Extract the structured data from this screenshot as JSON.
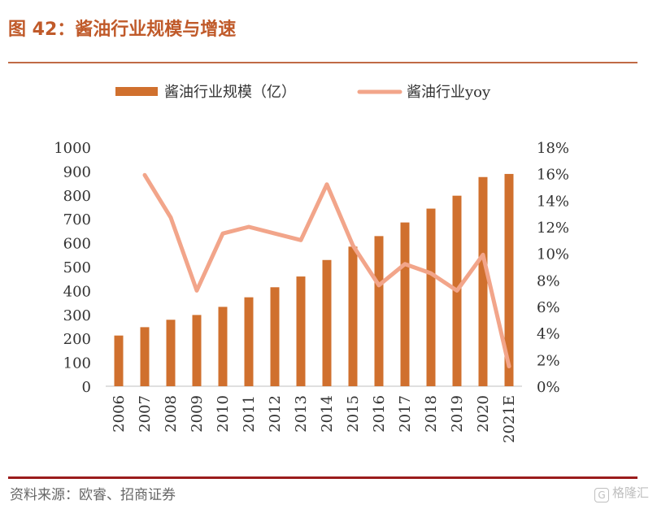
{
  "header": {
    "title": "图 42：酱油行业规模与增速"
  },
  "footer": {
    "source": "资料来源：欧睿、招商证券",
    "watermark": "格隆汇",
    "watermark_icon": "G"
  },
  "colors": {
    "bar": "#d0702e",
    "line": "#f2a58a",
    "title": "#c05a2a",
    "rule_bottom": "#9b1c1c"
  },
  "chart_data": {
    "type": "bar",
    "categories": [
      "2006",
      "2007",
      "2008",
      "2009",
      "2010",
      "2011",
      "2012",
      "2013",
      "2014",
      "2015",
      "2016",
      "2017",
      "2018",
      "2019",
      "2020",
      "2021E"
    ],
    "series": [
      {
        "name": "酱油行业规模（亿）",
        "type": "bar",
        "axis": "left",
        "values": [
          212,
          247,
          278,
          298,
          332,
          372,
          414,
          459,
          528,
          584,
          628,
          685,
          743,
          797,
          875,
          888
        ]
      },
      {
        "name": "酱油行业yoy",
        "type": "line",
        "axis": "right",
        "values": [
          null,
          15.9,
          12.7,
          7.2,
          11.5,
          12.0,
          11.5,
          11.0,
          15.2,
          10.6,
          7.6,
          9.2,
          8.5,
          7.2,
          9.9,
          1.5
        ]
      }
    ],
    "y_left": {
      "min": 0,
      "max": 1000,
      "ticks": [
        "0",
        "100",
        "200",
        "300",
        "400",
        "500",
        "600",
        "700",
        "800",
        "900",
        "1000"
      ]
    },
    "y_right": {
      "min": 0,
      "max": 18,
      "ticks": [
        "0%",
        "2%",
        "4%",
        "6%",
        "8%",
        "10%",
        "12%",
        "14%",
        "16%",
        "18%"
      ]
    },
    "grid": false,
    "legend": "top-center"
  }
}
